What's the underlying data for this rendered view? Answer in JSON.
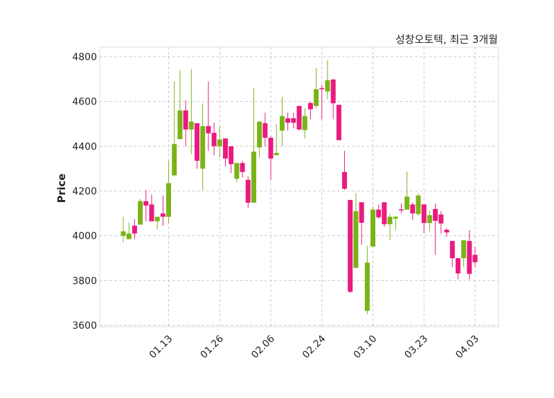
{
  "chart_data": {
    "type": "candlestick",
    "title": "성창오토텍, 최근 3개월",
    "xlabel": "",
    "ylabel": "Price",
    "ylim": [
      3594,
      4843
    ],
    "yticks": [
      3600,
      3800,
      4000,
      4200,
      4400,
      4600,
      4800
    ],
    "xtick_labels": [
      {
        "index": 8,
        "label": "01.13"
      },
      {
        "index": 17,
        "label": "01.26"
      },
      {
        "index": 26,
        "label": "02.06"
      },
      {
        "index": 35,
        "label": "02.24"
      },
      {
        "index": 44,
        "label": "03.10"
      },
      {
        "index": 53,
        "label": "03.23"
      },
      {
        "index": 62,
        "label": "04.03"
      }
    ],
    "grid": true,
    "colors": {
      "up": "#7ab317",
      "down": "#ea1a7f"
    },
    "ohlc": [
      [
        4000,
        4085,
        3970,
        4020
      ],
      [
        3985,
        4060,
        3985,
        4010
      ],
      [
        4045,
        4075,
        3985,
        4010
      ],
      [
        4050,
        4165,
        4050,
        4155
      ],
      [
        4155,
        4205,
        4065,
        4135
      ],
      [
        4140,
        4185,
        4065,
        4065
      ],
      [
        4065,
        4085,
        4030,
        4085
      ],
      [
        4100,
        4180,
        4045,
        4085
      ],
      [
        4085,
        4335,
        4055,
        4235
      ],
      [
        4270,
        4690,
        4265,
        4410
      ],
      [
        4432,
        4740,
        4432,
        4560
      ],
      [
        4560,
        4605,
        4400,
        4475
      ],
      [
        4475,
        4745,
        4365,
        4510
      ],
      [
        4503,
        4503,
        4300,
        4335
      ],
      [
        4300,
        4590,
        4205,
        4490
      ],
      [
        4490,
        4690,
        4380,
        4458
      ],
      [
        4460,
        4505,
        4360,
        4400
      ],
      [
        4400,
        4490,
        4350,
        4430
      ],
      [
        4435,
        4435,
        4310,
        4345
      ],
      [
        4400,
        4400,
        4280,
        4320
      ],
      [
        4255,
        4325,
        4240,
        4325
      ],
      [
        4325,
        4335,
        4260,
        4285
      ],
      [
        4250,
        4265,
        4125,
        4148
      ],
      [
        4148,
        4660,
        4148,
        4376
      ],
      [
        4395,
        4510,
        4350,
        4510
      ],
      [
        4503,
        4550,
        4400,
        4438
      ],
      [
        4438,
        4445,
        4250,
        4345
      ],
      [
        4360,
        4500,
        4360,
        4370
      ],
      [
        4470,
        4620,
        4400,
        4535
      ],
      [
        4525,
        4550,
        4470,
        4505
      ],
      [
        4525,
        4550,
        4480,
        4505
      ],
      [
        4580,
        4580,
        4470,
        4475
      ],
      [
        4472,
        4570,
        4435,
        4535
      ],
      [
        4593,
        4600,
        4520,
        4565
      ],
      [
        4580,
        4750,
        4570,
        4655
      ],
      [
        4660,
        4675,
        4520,
        4655
      ],
      [
        4645,
        4785,
        4610,
        4695
      ],
      [
        4698,
        4700,
        4520,
        4592
      ],
      [
        4585,
        4585,
        4427,
        4427
      ],
      [
        4285,
        4380,
        4205,
        4210
      ],
      [
        4160,
        4160,
        3745,
        3750
      ],
      [
        3857,
        4190,
        3855,
        4110
      ],
      [
        4150,
        4150,
        3960,
        4058
      ],
      [
        3665,
        3955,
        3650,
        3880
      ],
      [
        3952,
        4130,
        3952,
        4117
      ],
      [
        4117,
        4140,
        4075,
        4083
      ],
      [
        4150,
        4150,
        4040,
        4052
      ],
      [
        4052,
        4098,
        3980,
        4085
      ],
      [
        4077,
        4088,
        4025,
        4085
      ],
      [
        4118,
        4145,
        4100,
        4115
      ],
      [
        4117,
        4287,
        4117,
        4175
      ],
      [
        4140,
        4150,
        4070,
        4100
      ],
      [
        4097,
        4190,
        4090,
        4180
      ],
      [
        4140,
        4140,
        4012,
        4057
      ],
      [
        4057,
        4110,
        4020,
        4092
      ],
      [
        4120,
        4145,
        3915,
        4067
      ],
      [
        4095,
        4110,
        4010,
        4055
      ],
      [
        4027,
        4035,
        3995,
        4015
      ],
      [
        3977,
        3977,
        3860,
        3900
      ],
      [
        3900,
        3900,
        3805,
        3832
      ],
      [
        3900,
        3980,
        3860,
        3980
      ],
      [
        3977,
        4025,
        3805,
        3830
      ],
      [
        3915,
        3950,
        3860,
        3882
      ]
    ]
  }
}
